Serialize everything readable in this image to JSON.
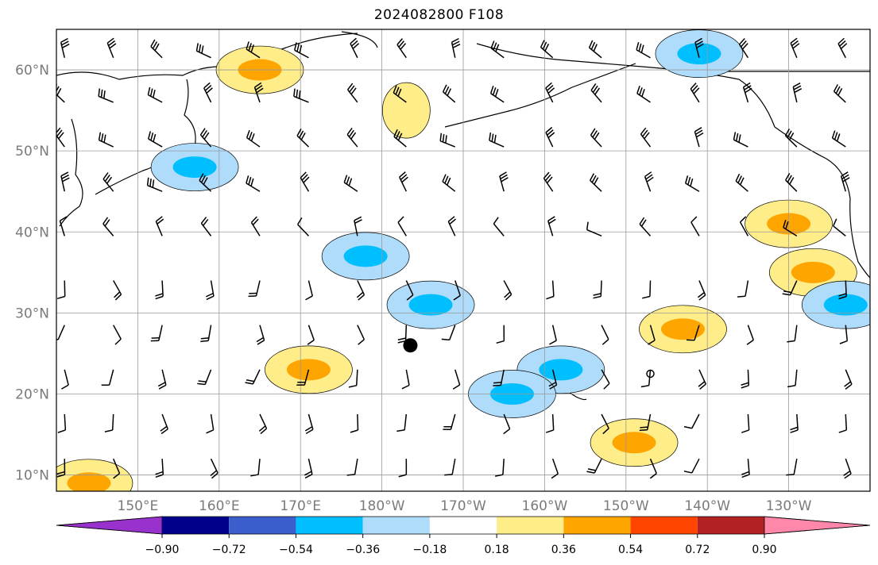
{
  "title": "2024082800 F108",
  "map": {
    "lat_labels": [
      "60°N",
      "50°N",
      "40°N",
      "30°N",
      "20°N",
      "10°N"
    ],
    "lon_labels": [
      "150°E",
      "160°E",
      "170°E",
      "180°W",
      "170°W",
      "160°W",
      "150°W",
      "140°W",
      "130°W"
    ],
    "lon_range": [
      140,
      240
    ],
    "lat_range": [
      8,
      65
    ],
    "gridlines": true,
    "colors": {
      "neg_strong": "#00bfff",
      "neg_weak": "#afdcfa",
      "pos_weak": "#ffed8a",
      "pos_mid": "#ffa500",
      "neg_core": "#3a5fcd"
    },
    "positive_regions": [
      {
        "lon": 165,
        "lat": 60,
        "level": 0.36
      },
      {
        "lon": 171,
        "lat": 23,
        "level": 0.36
      },
      {
        "lon": 144,
        "lat": 9,
        "level": 0.36
      },
      {
        "lon": 230,
        "lat": 41,
        "level": 0.36
      },
      {
        "lon": 217,
        "lat": 28,
        "level": 0.36
      },
      {
        "lon": 211,
        "lat": 14,
        "level": 0.36
      },
      {
        "lon": 233,
        "lat": 35,
        "level": 0.36
      },
      {
        "lon": 183,
        "lat": 55,
        "level": 0.18
      }
    ],
    "negative_regions": [
      {
        "lon": 186,
        "lat": 31,
        "level": -0.54
      },
      {
        "lon": 178,
        "lat": 37,
        "level": -0.54
      },
      {
        "lon": 219,
        "lat": 62,
        "level": -0.54
      },
      {
        "lon": 157,
        "lat": 48,
        "level": -0.36
      },
      {
        "lon": 202,
        "lat": 23,
        "level": -0.36
      },
      {
        "lon": 196,
        "lat": 20,
        "level": -0.36
      },
      {
        "lon": 237,
        "lat": 31,
        "level": -0.54
      }
    ],
    "markers": [
      {
        "lon": 183.5,
        "lat": 26,
        "kind": "filled-circle"
      },
      {
        "lon": 213,
        "lat": 22.5,
        "kind": "open-circle"
      }
    ]
  },
  "colorbar": {
    "colors": [
      "#9932cc",
      "#00008b",
      "#3a5fcd",
      "#00bfff",
      "#afdcfa",
      "#ffffff",
      "#ffed8a",
      "#ffa500",
      "#ff4500",
      "#b22222",
      "#ff88aa"
    ],
    "labels": [
      "−0.90",
      "−0.72",
      "−0.54",
      "−0.36",
      "−0.18",
      "0.18",
      "0.36",
      "0.54",
      "0.72",
      "0.90"
    ]
  }
}
